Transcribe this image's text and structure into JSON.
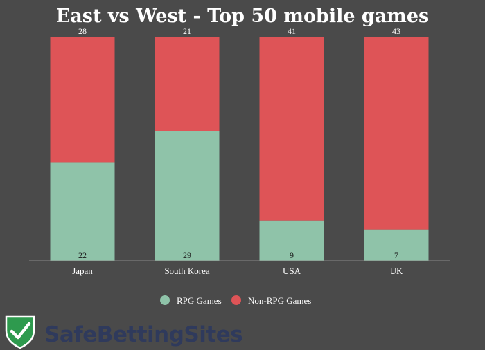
{
  "chart_data": {
    "type": "bar",
    "stacked": true,
    "title": "East vs West - Top 50 mobile games",
    "categories": [
      "Japan",
      "South Korea",
      "USA",
      "UK"
    ],
    "series": [
      {
        "name": "RPG Games",
        "values": [
          22,
          29,
          9,
          7
        ],
        "color": "#8fc3a9"
      },
      {
        "name": "Non-RPG Games",
        "values": [
          28,
          21,
          41,
          43
        ],
        "color": "#de5457"
      }
    ],
    "ylim": [
      0,
      50
    ],
    "grid": false,
    "legend_position": "bottom"
  },
  "brand": {
    "name": "SafeBettingSites",
    "icon": "shield-check-icon",
    "shield_color": "#2e9a4e",
    "text_color": "#2f3a5c"
  },
  "colors": {
    "background": "#4a4a4a",
    "axis": "#888888"
  }
}
